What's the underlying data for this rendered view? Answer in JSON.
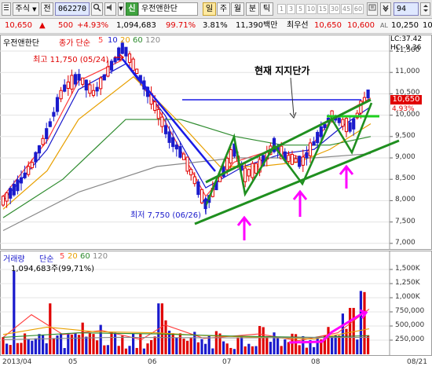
{
  "toolbar": {
    "market": "주식",
    "prev": "전",
    "code": "062270",
    "search_icon": "search-icon",
    "name_badge": "신",
    "stock_name": "우전앤한단",
    "period_active": "일",
    "period_week": "주",
    "period_month": "월",
    "period_minute": "분",
    "period_tick": "틱",
    "periods": [
      "1",
      "3",
      "5",
      "10",
      "15",
      "30",
      "45",
      "60"
    ],
    "count": "94"
  },
  "quote": {
    "price": "10,650",
    "change_arrow": "▲",
    "change": "500",
    "change_pct": "+4.93%",
    "volume": "1,094,683",
    "ratio": "99.71%",
    "turnover": "3.81%",
    "amount": "11,390백만",
    "best_ask_label": "최우선",
    "best_ask": "10,650",
    "best_bid": "10,600",
    "last_label": "AL",
    "last": "10,250",
    "last2": "10"
  },
  "price_pane": {
    "name": "우전앤한단",
    "ma_label": "종가 단순",
    "ma_periods": [
      "5",
      "10",
      "20",
      "60",
      "120"
    ],
    "ma_colors": [
      "#ff3b3b",
      "#1a1acc",
      "#e8a000",
      "#2e8b2e",
      "#888888"
    ],
    "lc": "LC:37.42",
    "hc": "HC:-9.36",
    "high_annotation": "최고 11,750 (05/24)",
    "low_annotation": "최저 7,750 (06/26)",
    "support_title": "현재 지지단가",
    "current_price_tag": "10,650",
    "current_pct_tag": "4.93%",
    "y_ticks": [
      "11,500",
      "11,000",
      "10,500",
      "10,000",
      "9,500",
      "9,000",
      "8,500",
      "8,000",
      "7,500",
      "7,000"
    ]
  },
  "volume_pane": {
    "name": "거래량",
    "ma_label": "단순",
    "ma_periods": [
      "5",
      "20",
      "60",
      "120"
    ],
    "ma_colors": [
      "#ff3b3b",
      "#e8a000",
      "#2e8b2e",
      "#888888"
    ],
    "current": "1,094,683주(99,71%)",
    "y_ticks": [
      "1,500K",
      "1,250K",
      "1,000K",
      "750,000",
      "500,000",
      "250,000"
    ]
  },
  "x_axis": {
    "labels": [
      "2013/04",
      "05",
      "06",
      "07",
      "08",
      "08/21"
    ]
  },
  "colors": {
    "up": "#e00000",
    "down": "#1a1acc",
    "annotation_green": "#1f8f1f",
    "annotation_magenta": "#ff00ff",
    "annotation_blue": "#1a1ae6"
  }
}
